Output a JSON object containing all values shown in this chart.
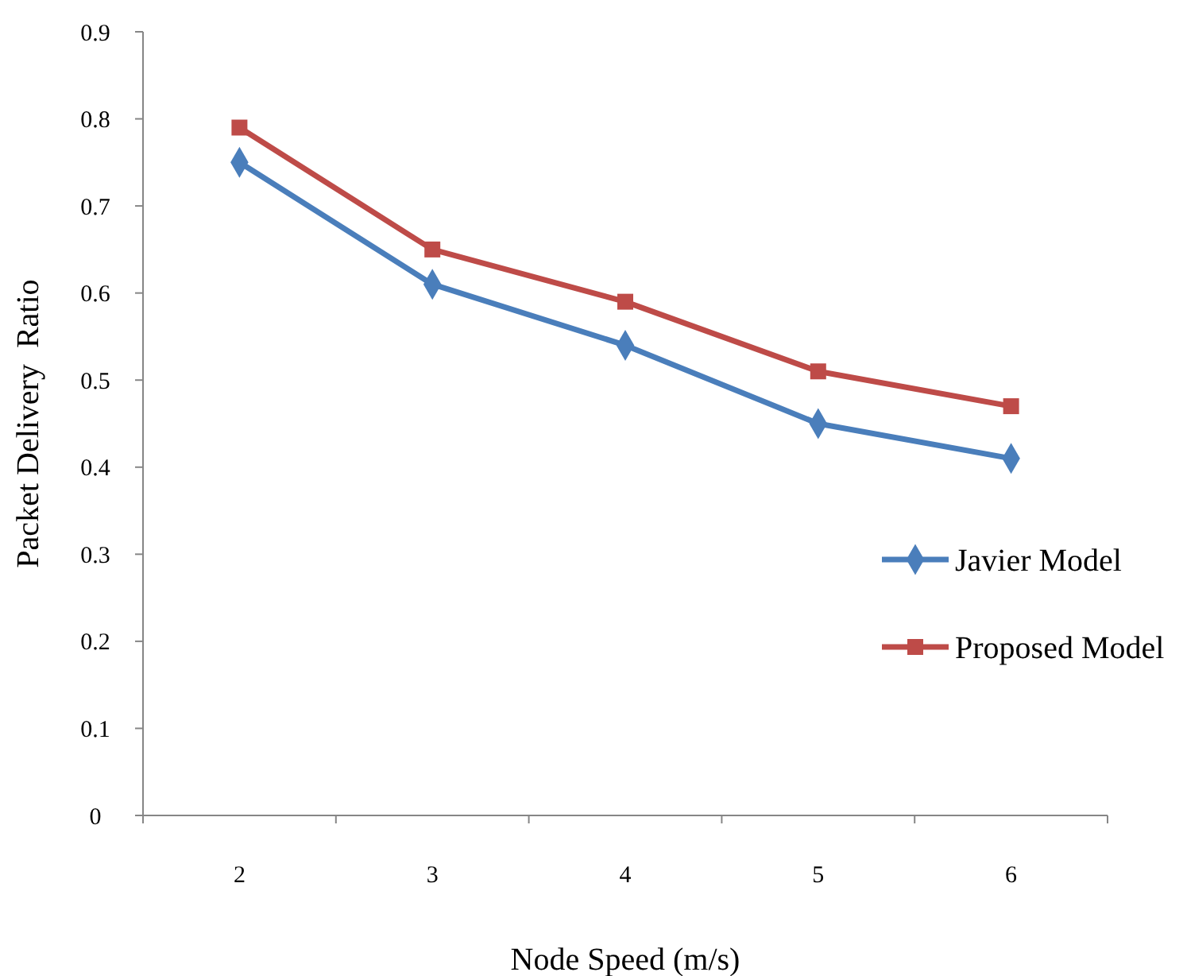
{
  "chart_data": {
    "type": "line",
    "xlabel": "Node Speed (m/s)",
    "ylabel": "Packet Delivery  Ratio",
    "categories": [
      "2",
      "3",
      "4",
      "5",
      "6"
    ],
    "series": [
      {
        "name": "Javier Model",
        "color": "#4a7ebb",
        "marker": "diamond",
        "values": [
          0.75,
          0.61,
          0.54,
          0.45,
          0.41
        ]
      },
      {
        "name": "Proposed Model",
        "color": "#be4b48",
        "marker": "square",
        "values": [
          0.79,
          0.65,
          0.59,
          0.51,
          0.47
        ]
      }
    ],
    "ylim": [
      0,
      0.9
    ],
    "yticks": [
      {
        "value": 0,
        "label": "0"
      },
      0.1,
      0.2,
      0.3,
      0.4,
      0.5,
      0.6,
      0.7,
      0.8,
      0.9
    ],
    "grid": false,
    "legend": "right",
    "line_style": "solid"
  }
}
